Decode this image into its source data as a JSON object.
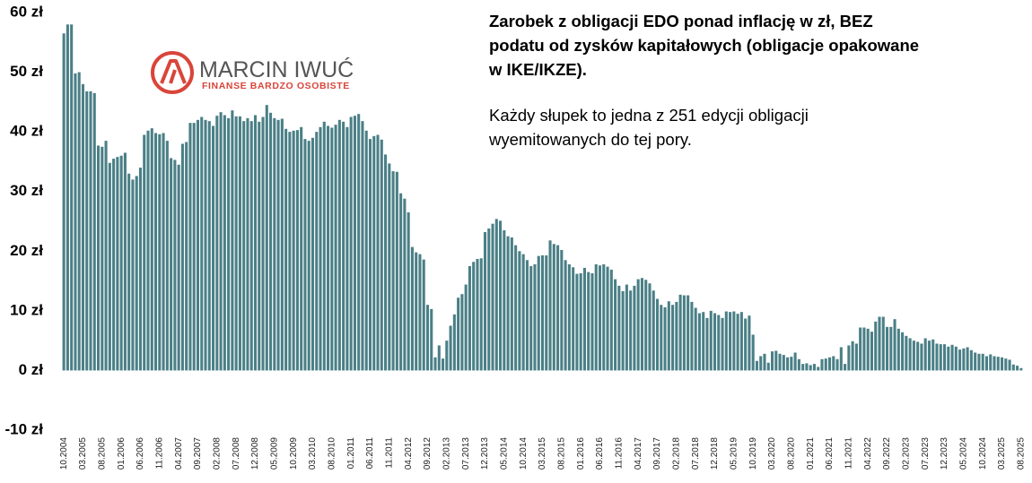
{
  "chart_data": {
    "type": "bar",
    "title": "Zarobek z obligacji EDO ponad inflację w zł, BEZ podatu od zysków kapitałowych (obligacje opakowane w IKE/IKZE).",
    "subtitle": "Każdy słupek to jedna z 251 edycji obligacji wyemitowanych do tej pory.",
    "logo": {
      "name": "MARCIN IWUĆ",
      "tagline": "FINANSE BARDZO OSOBISTE"
    },
    "color": "#4a7f86",
    "negative_label_color": "#e00000",
    "ylim": [
      -10,
      60
    ],
    "yticks": [
      {
        "value": -10,
        "label": "-10 zł"
      },
      {
        "value": 0,
        "label": "0 zł"
      },
      {
        "value": 10,
        "label": "10 zł"
      },
      {
        "value": 20,
        "label": "20 zł"
      },
      {
        "value": 30,
        "label": "30 zł"
      },
      {
        "value": 40,
        "label": "40 zł"
      },
      {
        "value": 50,
        "label": "50 zł"
      },
      {
        "value": 60,
        "label": "60 zł"
      }
    ],
    "grid": false,
    "categories": [
      "10.2004",
      null,
      null,
      null,
      null,
      "03.2005",
      null,
      null,
      null,
      null,
      "08.2005",
      null,
      null,
      null,
      null,
      "01.2006",
      null,
      null,
      null,
      null,
      "06.2006",
      null,
      null,
      null,
      null,
      "11.2006",
      null,
      null,
      null,
      null,
      "04.2007",
      null,
      null,
      null,
      null,
      "09.2007",
      null,
      null,
      null,
      null,
      "02.2008",
      null,
      null,
      null,
      null,
      "07.2008",
      null,
      null,
      null,
      null,
      "12.2008",
      null,
      null,
      null,
      null,
      "05.2009",
      null,
      null,
      null,
      null,
      "10.2009",
      null,
      null,
      null,
      null,
      "03.2010",
      null,
      null,
      null,
      null,
      "08.2010",
      null,
      null,
      null,
      null,
      "01.2011",
      null,
      null,
      null,
      null,
      "06.2011",
      null,
      null,
      null,
      null,
      "11.2011",
      null,
      null,
      null,
      null,
      "04.2012",
      null,
      null,
      null,
      null,
      "09.2012",
      null,
      null,
      null,
      null,
      "02.2013",
      null,
      null,
      null,
      null,
      "07.2013",
      null,
      null,
      null,
      null,
      "12.2013",
      null,
      null,
      null,
      null,
      "05.2014",
      null,
      null,
      null,
      null,
      "10.2014",
      null,
      null,
      null,
      null,
      "03.2015",
      null,
      null,
      null,
      null,
      "08.2015",
      null,
      null,
      null,
      null,
      "01.2016",
      null,
      null,
      null,
      null,
      "06.2016",
      null,
      null,
      null,
      null,
      "11.2016",
      null,
      null,
      null,
      null,
      "04.2017",
      null,
      null,
      null,
      null,
      "09.2017",
      null,
      null,
      null,
      null,
      "02.2018",
      null,
      null,
      null,
      null,
      "07.2018",
      null,
      null,
      null,
      null,
      "12.2018",
      null,
      null,
      null,
      null,
      "05.2019",
      null,
      null,
      null,
      null,
      "10.2019",
      null,
      null,
      null,
      null,
      "03.2020",
      null,
      null,
      null,
      null,
      "08.2020",
      null,
      null,
      null,
      null,
      "01.2021",
      null,
      null,
      null,
      null,
      "06.2021",
      null,
      null,
      null,
      null,
      "11.2021",
      null,
      null,
      null,
      null,
      "04.2022",
      null,
      null,
      null,
      null,
      "09.2022",
      null,
      null,
      null,
      null,
      "02.2023",
      null,
      null,
      null,
      null,
      "07.2023",
      null,
      null,
      null,
      null,
      "12.2023",
      null,
      null,
      null,
      null,
      "05.2024",
      null,
      null,
      null,
      null,
      "10.2024",
      null,
      null,
      null,
      null,
      "03.2025",
      null,
      null,
      null,
      null,
      "08.2025"
    ],
    "values": [
      56.5,
      58,
      58,
      49.8,
      50,
      48,
      46.8,
      46.8,
      46.5,
      37.7,
      37.5,
      38.5,
      34.8,
      35.5,
      35.8,
      36,
      36.5,
      33,
      32,
      32.6,
      34,
      39.5,
      40.2,
      40.6,
      39.8,
      39.6,
      39.8,
      38.5,
      35.6,
      35.3,
      34.5,
      38,
      38.3,
      41.5,
      41.5,
      42,
      42.5,
      42,
      41.8,
      41,
      42.7,
      43.3,
      42.8,
      42.3,
      43.6,
      42.6,
      42.6,
      41.8,
      42.3,
      41.8,
      42.8,
      41.7,
      42.5,
      44.5,
      43.2,
      42.3,
      42,
      42.2,
      40.5,
      40,
      40.2,
      40.3,
      40.8,
      38.8,
      38.5,
      39,
      40,
      40.8,
      41.7,
      41,
      40.7,
      41.2,
      42,
      41.7,
      40.8,
      42.5,
      42.7,
      43,
      41.8,
      40.2,
      38.8,
      39.3,
      39.5,
      38.7,
      36.2,
      34.7,
      33.4,
      33.3,
      29.7,
      28.8,
      26.5,
      20.7,
      19.8,
      19.5,
      18.6,
      11,
      10.3,
      2.2,
      4.2,
      2,
      5,
      7.5,
      9.4,
      12.2,
      12.8,
      14.4,
      17.5,
      18.2,
      18.7,
      18.8,
      23.2,
      23.8,
      24.6,
      25.4,
      25.1,
      23.5,
      22.5,
      22.3,
      21,
      20,
      19.5,
      18.5,
      17.5,
      17.8,
      19.2,
      19.3,
      19.3,
      21.8,
      21.2,
      21,
      20.2,
      18.5,
      17.8,
      17.3,
      16.2,
      16.3,
      17.2,
      16.5,
      16.3,
      17.8,
      17.6,
      17.8,
      17.4,
      16.9,
      15.3,
      14.2,
      13.3,
      14.4,
      13.4,
      14.2,
      15.3,
      15.5,
      15.2,
      14.6,
      13.4,
      12,
      11,
      10.6,
      11.6,
      11,
      11.5,
      12.7,
      12.6,
      12.6,
      11.5,
      10.5,
      9.6,
      9.8,
      8.8,
      10,
      9.6,
      9.3,
      8.8,
      9.9,
      9.8,
      9.9,
      9.5,
      9.8,
      8.7,
      9.2,
      6,
      1.6,
      2.4,
      2.8,
      1.3,
      3.2,
      3.3,
      2.8,
      2.6,
      2.2,
      2.3,
      3,
      1.9,
      1.1,
      1.2,
      0.9,
      1.1,
      0.6,
      1.9,
      2,
      2.2,
      2.4,
      1.9,
      3.9,
      1.1,
      4.2,
      4.9,
      4.5,
      7.2,
      7.2,
      7,
      6.5,
      8.2,
      9,
      9,
      7.3,
      7.3,
      8.6,
      7,
      6.4,
      5.8,
      5.4,
      5,
      4.8,
      4.5,
      5.4,
      5,
      5.2,
      4.5,
      4.4,
      4.4,
      4,
      4.3,
      4,
      3.5,
      3.7,
      3.9,
      3.4,
      3,
      2.8,
      2.8,
      2.4,
      2.7,
      2.4,
      2.3,
      2.2,
      2,
      1.8,
      1,
      0.8,
      0.4
    ]
  }
}
